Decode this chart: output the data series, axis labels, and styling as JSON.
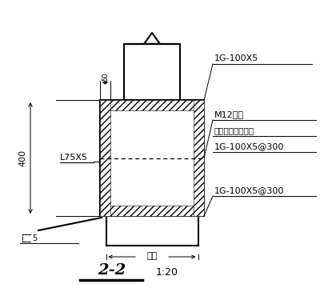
{
  "bg_color": "#ffffff",
  "line_color": "#000000",
  "labels": {
    "1G_top": "1G-100X5",
    "M12": "M12通栓",
    "cavity": "空腹内灌注结构胶",
    "1G_vert": "1G-100X5@300",
    "1G_bot": "1G-100X5@300",
    "L75X5": "L75X5",
    "dim_400": "400",
    "dim_50": "50",
    "wall_thick": "墙厚",
    "dim_5": "5",
    "section": "2-2",
    "scale": "1:20"
  }
}
